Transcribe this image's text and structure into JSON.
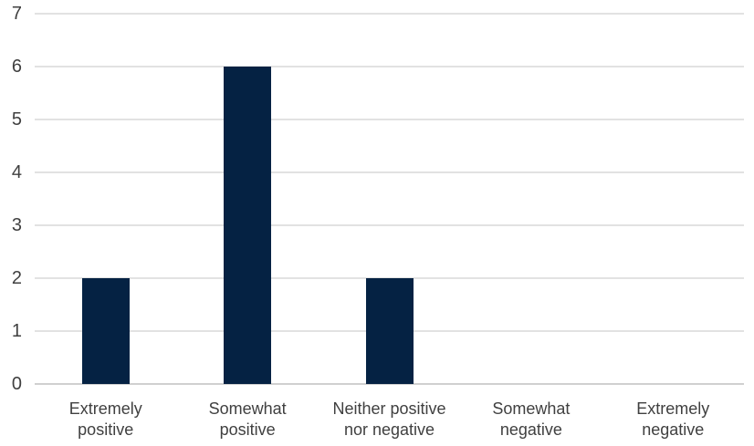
{
  "chart_data": {
    "type": "bar",
    "title": "",
    "xlabel": "",
    "ylabel": "",
    "categories": [
      "Extremely positive",
      "Somewhat positive",
      "Neither positive nor negative",
      "Somewhat negative",
      "Extremely negative"
    ],
    "category_label_lines": [
      [
        "Extremely",
        "positive"
      ],
      [
        "Somewhat",
        "positive"
      ],
      [
        "Neither positive",
        "nor negative"
      ],
      [
        "Somewhat",
        "negative"
      ],
      [
        "Extremely",
        "negative"
      ]
    ],
    "values": [
      2,
      6,
      2,
      0,
      0
    ],
    "ylim": [
      0,
      7
    ],
    "yticks": [
      0,
      1,
      2,
      3,
      4,
      5,
      6,
      7
    ],
    "grid": true,
    "legend": "none",
    "colors": {
      "bar": "#052243",
      "gridline": "#e2e2e2",
      "axis_line": "#d0d0d0",
      "text": "#404040",
      "background": "#ffffff"
    }
  }
}
